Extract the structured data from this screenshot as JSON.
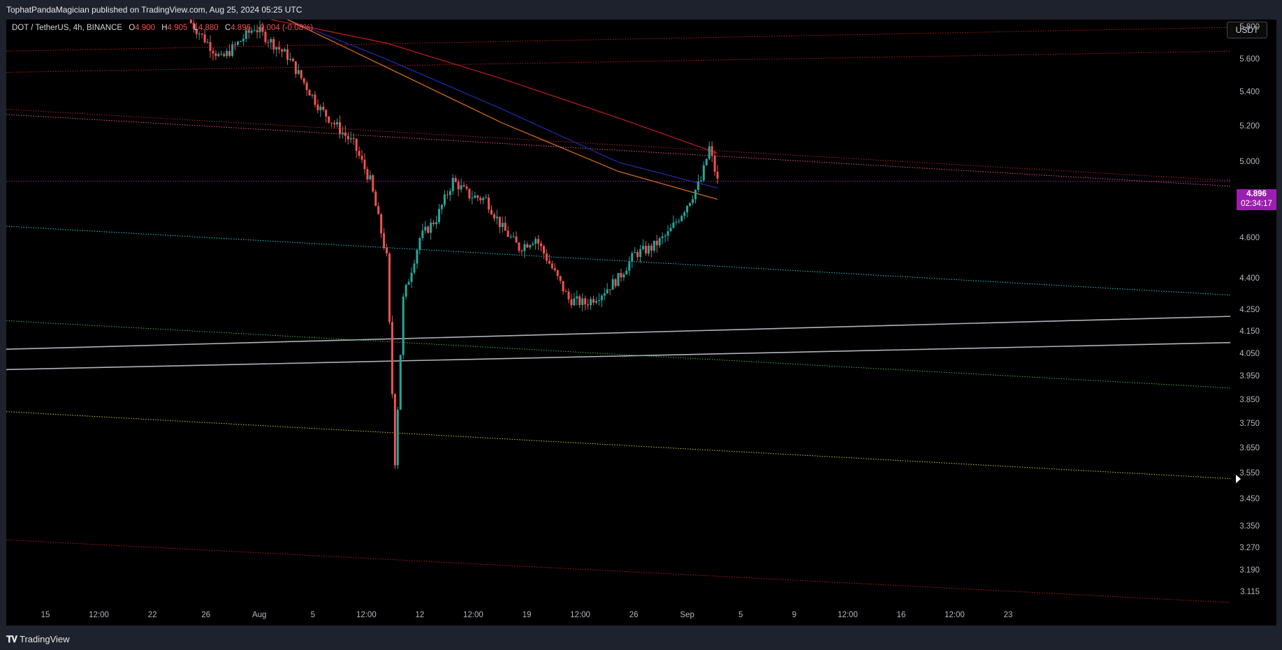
{
  "header": {
    "published_text": "TophatPandaMagician published on TradingView.com, Aug 25, 2024 05:25 UTC"
  },
  "legend": {
    "symbol": "DOT / TetherUS, 4h, BINANCE",
    "open_label": "O",
    "open_value": "4.900",
    "high_label": "H",
    "high_value": "4.905",
    "low_label": "L",
    "low_value": "4.880",
    "close_label": "C",
    "close_value": "4.896",
    "change": "-0.004 (-0.08%)"
  },
  "currency_button": "USDT",
  "last_price": {
    "value": "4.896",
    "countdown": "02:34:17"
  },
  "footer": {
    "brand": "TradingView"
  },
  "colors": {
    "background": "#000000",
    "up_candle": "#26a69a",
    "down_candle": "#ef5350",
    "price_badge": "#9c1eb0",
    "ma_red": "#c62828",
    "ma_blue": "#1e2a9e",
    "ma_orange": "#d2691e"
  },
  "chart_data": {
    "type": "candlestick",
    "title": "DOT / TetherUS, 4h, BINANCE",
    "y_scale": "log",
    "ylim": [
      3.08,
      5.85
    ],
    "y_ticks": [
      "5.800",
      "5.600",
      "5.400",
      "5.200",
      "5.000",
      "4.800",
      "4.600",
      "4.400",
      "4.250",
      "4.150",
      "4.050",
      "3.950",
      "3.850",
      "3.750",
      "3.650",
      "3.550",
      "3.450",
      "3.350",
      "3.270",
      "3.190",
      "3.115"
    ],
    "x_ticks": [
      "15",
      "12:00",
      "22",
      "26",
      "Aug",
      "5",
      "12:00",
      "12",
      "12:00",
      "19",
      "12:00",
      "26",
      "Sep",
      "5",
      "9",
      "12:00",
      "16",
      "12:00",
      "23"
    ],
    "xlim": [
      "2024-07-13",
      "2024-09-25"
    ],
    "price_path": [
      {
        "date": "2024-07-24",
        "price": 5.85
      },
      {
        "date": "2024-07-26",
        "price": 5.6
      },
      {
        "date": "2024-07-28",
        "price": 5.8
      },
      {
        "date": "2024-07-30",
        "price": 5.62
      },
      {
        "date": "2024-08-01",
        "price": 5.3
      },
      {
        "date": "2024-08-02",
        "price": 5.2
      },
      {
        "date": "2024-08-03",
        "price": 5.1
      },
      {
        "date": "2024-08-04",
        "price": 4.9
      },
      {
        "date": "2024-08-05",
        "price": 4.5
      },
      {
        "date": "2024-08-05T12:00",
        "price": 3.6
      },
      {
        "date": "2024-08-06",
        "price": 4.3
      },
      {
        "date": "2024-08-07",
        "price": 4.6
      },
      {
        "date": "2024-08-08",
        "price": 4.7
      },
      {
        "date": "2024-08-09",
        "price": 4.9
      },
      {
        "date": "2024-08-10",
        "price": 4.82
      },
      {
        "date": "2024-08-11",
        "price": 4.8
      },
      {
        "date": "2024-08-12",
        "price": 4.65
      },
      {
        "date": "2024-08-13",
        "price": 4.55
      },
      {
        "date": "2024-08-14",
        "price": 4.6
      },
      {
        "date": "2024-08-15",
        "price": 4.45
      },
      {
        "date": "2024-08-16",
        "price": 4.3
      },
      {
        "date": "2024-08-17",
        "price": 4.28
      },
      {
        "date": "2024-08-18",
        "price": 4.33
      },
      {
        "date": "2024-08-19",
        "price": 4.4
      },
      {
        "date": "2024-08-20",
        "price": 4.52
      },
      {
        "date": "2024-08-21",
        "price": 4.55
      },
      {
        "date": "2024-08-22",
        "price": 4.62
      },
      {
        "date": "2024-08-23",
        "price": 4.75
      },
      {
        "date": "2024-08-24",
        "price": 4.9
      },
      {
        "date": "2024-08-24T12:00",
        "price": 5.08
      },
      {
        "date": "2024-08-25",
        "price": 4.896
      }
    ],
    "moving_averages": [
      {
        "color": "red",
        "points": [
          {
            "date": "2024-07-29",
            "price": 5.85
          },
          {
            "date": "2024-08-05",
            "price": 5.7
          },
          {
            "date": "2024-08-12",
            "price": 5.48
          },
          {
            "date": "2024-08-19",
            "price": 5.25
          },
          {
            "date": "2024-08-25",
            "price": 5.05
          }
        ]
      },
      {
        "color": "blue",
        "points": [
          {
            "date": "2024-07-30",
            "price": 5.85
          },
          {
            "date": "2024-08-05",
            "price": 5.6
          },
          {
            "date": "2024-08-12",
            "price": 5.3
          },
          {
            "date": "2024-08-19",
            "price": 5.0
          },
          {
            "date": "2024-08-25",
            "price": 4.86
          }
        ]
      },
      {
        "color": "orange",
        "points": [
          {
            "date": "2024-07-30",
            "price": 5.85
          },
          {
            "date": "2024-08-05",
            "price": 5.55
          },
          {
            "date": "2024-08-12",
            "price": 5.22
          },
          {
            "date": "2024-08-19",
            "price": 4.95
          },
          {
            "date": "2024-08-25",
            "price": 4.8
          }
        ]
      }
    ],
    "trendlines": [
      {
        "color": "red",
        "style": "dotted",
        "start": {
          "date": "2024-07-13",
          "price": 5.65
        },
        "end": {
          "date": "2024-09-25",
          "price": 5.8
        }
      },
      {
        "color": "red",
        "style": "dotted",
        "start": {
          "date": "2024-07-13",
          "price": 5.52
        },
        "end": {
          "date": "2024-09-25",
          "price": 5.65
        }
      },
      {
        "color": "red",
        "style": "dotted",
        "start": {
          "date": "2024-07-13",
          "price": 5.3
        },
        "end": {
          "date": "2024-09-25",
          "price": 4.9
        }
      },
      {
        "color": "pink",
        "style": "dotted",
        "start": {
          "date": "2024-07-13",
          "price": 5.27
        },
        "end": {
          "date": "2024-09-25",
          "price": 4.87
        }
      },
      {
        "color": "purple",
        "style": "dotted",
        "start": {
          "date": "2024-07-13",
          "price": 4.896
        },
        "end": {
          "date": "2024-09-25",
          "price": 4.896
        }
      },
      {
        "color": "cyan",
        "style": "dotted",
        "start": {
          "date": "2024-07-13",
          "price": 4.66
        },
        "end": {
          "date": "2024-09-25",
          "price": 4.32
        }
      },
      {
        "color": "gray",
        "style": "solid",
        "start": {
          "date": "2024-07-13",
          "price": 4.07
        },
        "end": {
          "date": "2024-09-25",
          "price": 4.22
        }
      },
      {
        "color": "gray",
        "style": "solid",
        "start": {
          "date": "2024-07-13",
          "price": 3.98
        },
        "end": {
          "date": "2024-09-25",
          "price": 4.1
        }
      },
      {
        "color": "green",
        "style": "dotted",
        "start": {
          "date": "2024-07-13",
          "price": 4.2
        },
        "end": {
          "date": "2024-09-25",
          "price": 3.9
        }
      },
      {
        "color": "yellow",
        "style": "dotted",
        "start": {
          "date": "2024-07-13",
          "price": 3.8
        },
        "end": {
          "date": "2024-09-25",
          "price": 3.53
        }
      },
      {
        "color": "red",
        "style": "dotted",
        "start": {
          "date": "2024-07-13",
          "price": 3.3
        },
        "end": {
          "date": "2024-09-25",
          "price": 3.08
        }
      }
    ]
  }
}
